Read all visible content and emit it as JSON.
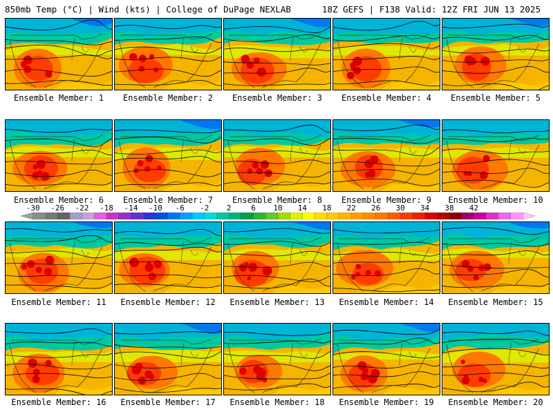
{
  "header": {
    "left": "850mb Temp (°C) | Wind (kts) | College of DuPage NEXLAB",
    "right": "18Z GEFS | F138 Valid: 12Z FRI JUN 13 2025"
  },
  "panels": [
    {
      "caption": "Ensemble Member: 1"
    },
    {
      "caption": "Ensemble Member: 2"
    },
    {
      "caption": "Ensemble Member: 3"
    },
    {
      "caption": "Ensemble Member: 4"
    },
    {
      "caption": "Ensemble Member: 5"
    },
    {
      "caption": "Ensemble Member: 6"
    },
    {
      "caption": "Ensemble Member: 7"
    },
    {
      "caption": "Ensemble Member: 8"
    },
    {
      "caption": "Ensemble Member: 9"
    },
    {
      "caption": "Ensemble Member: 10"
    },
    {
      "caption": "Ensemble Member: 11"
    },
    {
      "caption": "Ensemble Member: 12"
    },
    {
      "caption": "Ensemble Member: 13"
    },
    {
      "caption": "Ensemble Member: 14"
    },
    {
      "caption": "Ensemble Member: 15"
    },
    {
      "caption": "Ensemble Member: 16"
    },
    {
      "caption": "Ensemble Member: 17"
    },
    {
      "caption": "Ensemble Member: 18"
    },
    {
      "caption": "Ensemble Member: 19"
    },
    {
      "caption": "Ensemble Member: 20"
    }
  ],
  "colorbar": {
    "labels": [
      "-30",
      "-26",
      "-22",
      "-18",
      "-14",
      "-10",
      "-6",
      "-2",
      "2",
      "6",
      "10",
      "14",
      "18",
      "22",
      "26",
      "30",
      "34",
      "38",
      "42"
    ],
    "colors": [
      "#a0a0a0",
      "#8c8c8c",
      "#787878",
      "#646464",
      "#a0a0c8",
      "#c8a0dc",
      "#dc64dc",
      "#c832c8",
      "#9632c8",
      "#6432c8",
      "#3232dc",
      "#0050dc",
      "#0078f0",
      "#00a0ff",
      "#00c8ff",
      "#00dcdc",
      "#00c8a0",
      "#00b478",
      "#00a050",
      "#32b432",
      "#64c832",
      "#a0dc00",
      "#dcf000",
      "#ffff00",
      "#ffdc00",
      "#ffc800",
      "#ffb400",
      "#ffa000",
      "#ff8c00",
      "#ff7800",
      "#ff5a00",
      "#ff3c00",
      "#f01e00",
      "#dc0000",
      "#b40000",
      "#8c0000",
      "#a0006e",
      "#c80096",
      "#dc32c8",
      "#f064f0",
      "#ff96ff",
      "#ffc8ff"
    ]
  }
}
